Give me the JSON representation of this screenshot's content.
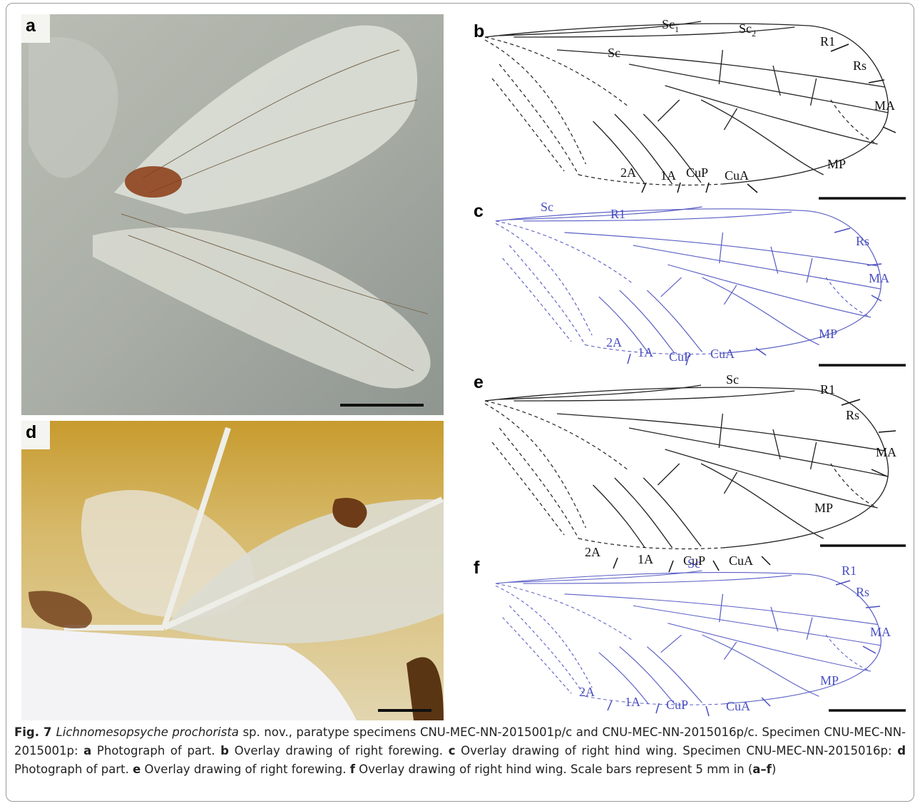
{
  "panels": [
    {
      "letter": "a"
    },
    {
      "letter": "b",
      "vein_labels": [
        {
          "text": "Sc",
          "sub": "1"
        },
        {
          "text": "Sc",
          "sub": "2"
        },
        {
          "text": "Sc"
        },
        {
          "text": "R1"
        },
        {
          "text": "Rs"
        },
        {
          "text": "MA"
        },
        {
          "text": "MP"
        },
        {
          "text": "2A"
        },
        {
          "text": "1A"
        },
        {
          "text": "CuP"
        },
        {
          "text": "CuA"
        }
      ]
    },
    {
      "letter": "c",
      "vein_labels": [
        {
          "text": "Sc"
        },
        {
          "text": "R1"
        },
        {
          "text": "Rs"
        },
        {
          "text": "MA"
        },
        {
          "text": "MP"
        },
        {
          "text": "2A"
        },
        {
          "text": "1A"
        },
        {
          "text": "CuP"
        },
        {
          "text": "CuA"
        }
      ]
    },
    {
      "letter": "d"
    },
    {
      "letter": "e",
      "vein_labels": [
        {
          "text": "Sc"
        },
        {
          "text": "R1"
        },
        {
          "text": "Rs"
        },
        {
          "text": "MA"
        },
        {
          "text": "MP"
        },
        {
          "text": "2A"
        },
        {
          "text": "1A"
        },
        {
          "text": "CuP"
        },
        {
          "text": "CuA"
        }
      ]
    },
    {
      "letter": "f",
      "vein_labels": [
        {
          "text": "Sc"
        },
        {
          "text": "R1"
        },
        {
          "text": "Rs"
        },
        {
          "text": "MA"
        },
        {
          "text": "MP"
        },
        {
          "text": "2A"
        },
        {
          "text": "1A"
        },
        {
          "text": "CuP"
        },
        {
          "text": "CuA"
        }
      ]
    }
  ],
  "caption": [
    {
      "text": "Fig. 7 ",
      "style": "bold"
    },
    {
      "text": "Lichnomesopsyche prochorista",
      "style": "italic"
    },
    {
      "text": " sp. nov., paratype specimens CNU-MEC-NN-2015001p/c and CNU-MEC-NN-2015016p/c. Specimen CNU-MEC-NN-2015001p: ",
      "style": "normal"
    },
    {
      "text": "a",
      "style": "bold"
    },
    {
      "text": " Photograph of part. ",
      "style": "normal"
    },
    {
      "text": "b",
      "style": "bold"
    },
    {
      "text": " Overlay drawing of right forewing. ",
      "style": "normal"
    },
    {
      "text": "c",
      "style": "bold"
    },
    {
      "text": " Overlay drawing of right hind wing. Specimen CNU-MEC-NN-2015016p: ",
      "style": "normal"
    },
    {
      "text": "d",
      "style": "bold"
    },
    {
      "text": " Photograph of part. ",
      "style": "normal"
    },
    {
      "text": "e",
      "style": "bold"
    },
    {
      "text": " Overlay drawing of right forewing. ",
      "style": "normal"
    },
    {
      "text": "f",
      "style": "bold"
    },
    {
      "text": " Overlay drawing of right hind wing. Scale bars represent 5 mm in (",
      "style": "normal"
    },
    {
      "text": "a–f",
      "style": "bold"
    },
    {
      "text": ")",
      "style": "normal"
    }
  ]
}
